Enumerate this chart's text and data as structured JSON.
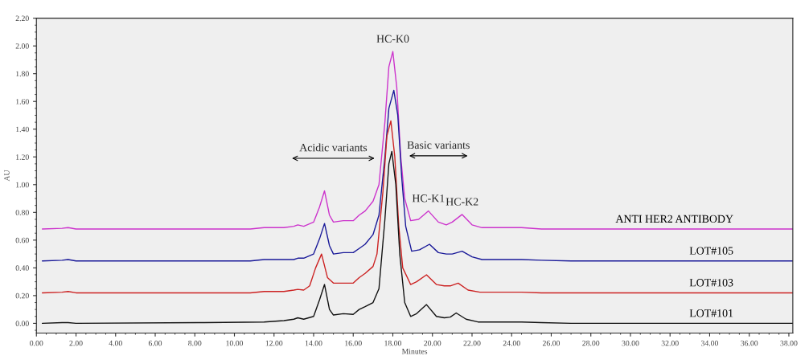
{
  "chart_data": {
    "type": "line",
    "xlabel": "Minutes",
    "ylabel": "AU",
    "xlim": [
      0,
      38.2
    ],
    "ylim": [
      -0.07,
      2.2
    ],
    "xticks": [
      {
        "value": 0,
        "label": "0.00"
      },
      {
        "value": 2,
        "label": "2.00"
      },
      {
        "value": 4,
        "label": "4.00"
      },
      {
        "value": 6,
        "label": "6.00"
      },
      {
        "value": 8,
        "label": "8.00"
      },
      {
        "value": 10,
        "label": "10.00"
      },
      {
        "value": 12,
        "label": "12.00"
      },
      {
        "value": 14,
        "label": "14.00"
      },
      {
        "value": 16,
        "label": "16.00"
      },
      {
        "value": 18,
        "label": "18.00"
      },
      {
        "value": 20,
        "label": "20.00"
      },
      {
        "value": 22,
        "label": "22.00"
      },
      {
        "value": 24,
        "label": "24.00"
      },
      {
        "value": 26,
        "label": "26.00"
      },
      {
        "value": 28,
        "label": "28.00"
      },
      {
        "value": 30,
        "label": "30.00"
      },
      {
        "value": 32,
        "label": "32.00"
      },
      {
        "value": 34,
        "label": "34.00"
      },
      {
        "value": 36,
        "label": "36.00"
      },
      {
        "value": 38,
        "label": "38.00"
      }
    ],
    "yticks": [
      {
        "value": 0,
        "label": "0.00"
      },
      {
        "value": 0.2,
        "label": "0.20"
      },
      {
        "value": 0.4,
        "label": "0.40"
      },
      {
        "value": 0.6,
        "label": "0.60"
      },
      {
        "value": 0.8,
        "label": "0.80"
      },
      {
        "value": 1.0,
        "label": "1.00"
      },
      {
        "value": 1.2,
        "label": "1.20"
      },
      {
        "value": 1.4,
        "label": "1.40"
      },
      {
        "value": 1.6,
        "label": "1.60"
      },
      {
        "value": 1.8,
        "label": "1.80"
      },
      {
        "value": 2.0,
        "label": "2.00"
      },
      {
        "value": 2.2,
        "label": "2.20"
      }
    ],
    "grid": false,
    "legend": false,
    "marker": "none",
    "line_style": "solid",
    "series": [
      {
        "name": "ANTI HER2 ANTIBODY",
        "color": "#cc33cc",
        "x": [
          0.3,
          1.3,
          1.6,
          2.0,
          10.8,
          11.5,
          12.5,
          13.0,
          13.2,
          13.5,
          14.0,
          14.3,
          14.55,
          14.8,
          15.0,
          15.5,
          16.0,
          16.3,
          16.6,
          17.0,
          17.3,
          17.6,
          17.8,
          18.0,
          18.2,
          18.4,
          18.6,
          18.9,
          19.3,
          19.8,
          20.3,
          20.7,
          21.0,
          21.5,
          22.0,
          22.5,
          24.5,
          25.5,
          27.0,
          38.2
        ],
        "values": [
          0.68,
          0.685,
          0.69,
          0.68,
          0.68,
          0.69,
          0.69,
          0.7,
          0.71,
          0.7,
          0.73,
          0.84,
          0.955,
          0.78,
          0.73,
          0.74,
          0.74,
          0.78,
          0.81,
          0.88,
          1.0,
          1.45,
          1.85,
          1.96,
          1.7,
          1.2,
          0.9,
          0.74,
          0.75,
          0.81,
          0.73,
          0.71,
          0.73,
          0.785,
          0.71,
          0.69,
          0.69,
          0.68,
          0.68,
          0.68
        ]
      },
      {
        "name": "LOT#105",
        "color": "#1a1a99",
        "x": [
          0.3,
          1.3,
          1.6,
          2.0,
          10.8,
          11.5,
          12.5,
          13.0,
          13.2,
          13.5,
          14.0,
          14.3,
          14.55,
          14.8,
          15.0,
          15.5,
          16.0,
          16.3,
          16.6,
          17.0,
          17.3,
          17.6,
          17.8,
          18.05,
          18.25,
          18.45,
          18.65,
          18.95,
          19.35,
          19.85,
          20.3,
          20.7,
          21.0,
          21.5,
          22.0,
          22.5,
          24.5,
          25.5,
          27.0,
          38.2
        ],
        "values": [
          0.45,
          0.455,
          0.46,
          0.45,
          0.45,
          0.46,
          0.46,
          0.46,
          0.47,
          0.47,
          0.5,
          0.61,
          0.72,
          0.56,
          0.5,
          0.51,
          0.51,
          0.54,
          0.57,
          0.64,
          0.78,
          1.2,
          1.55,
          1.68,
          1.5,
          1.05,
          0.7,
          0.52,
          0.53,
          0.57,
          0.51,
          0.5,
          0.5,
          0.52,
          0.48,
          0.46,
          0.46,
          0.455,
          0.45,
          0.45
        ]
      },
      {
        "name": "LOT#103",
        "color": "#cc2222",
        "x": [
          0.3,
          1.3,
          1.6,
          2.0,
          10.8,
          11.5,
          12.5,
          13.0,
          13.2,
          13.5,
          13.8,
          14.1,
          14.4,
          14.7,
          15.0,
          15.5,
          16.0,
          16.3,
          16.6,
          17.0,
          17.2,
          17.5,
          17.7,
          17.9,
          18.1,
          18.3,
          18.5,
          18.9,
          19.2,
          19.7,
          20.2,
          20.6,
          20.9,
          21.3,
          21.8,
          22.4,
          24.5,
          25.5,
          27.0,
          38.2
        ],
        "values": [
          0.22,
          0.225,
          0.23,
          0.22,
          0.22,
          0.23,
          0.23,
          0.24,
          0.245,
          0.24,
          0.27,
          0.4,
          0.5,
          0.33,
          0.29,
          0.29,
          0.29,
          0.33,
          0.36,
          0.41,
          0.5,
          0.95,
          1.35,
          1.46,
          1.2,
          0.7,
          0.4,
          0.28,
          0.3,
          0.35,
          0.28,
          0.27,
          0.27,
          0.29,
          0.24,
          0.225,
          0.225,
          0.22,
          0.22,
          0.22
        ]
      },
      {
        "name": "LOT#101",
        "color": "#111111",
        "x": [
          0.3,
          1.3,
          1.6,
          2.0,
          8.2,
          11.5,
          12.5,
          13.0,
          13.2,
          13.5,
          14.0,
          14.3,
          14.55,
          14.8,
          15.0,
          15.5,
          16.0,
          16.3,
          16.6,
          17.0,
          17.3,
          17.6,
          17.8,
          17.95,
          18.15,
          18.35,
          18.6,
          18.9,
          19.2,
          19.7,
          20.2,
          20.6,
          20.9,
          21.2,
          21.7,
          22.3,
          24.5,
          25.5,
          27.0,
          38.2
        ],
        "values": [
          0.0,
          0.005,
          0.005,
          0.0,
          0.005,
          0.01,
          0.02,
          0.03,
          0.04,
          0.03,
          0.05,
          0.17,
          0.28,
          0.1,
          0.06,
          0.07,
          0.065,
          0.1,
          0.12,
          0.15,
          0.25,
          0.75,
          1.15,
          1.24,
          1.0,
          0.5,
          0.15,
          0.05,
          0.07,
          0.135,
          0.05,
          0.04,
          0.045,
          0.075,
          0.03,
          0.01,
          0.01,
          0.005,
          0.0,
          0.0
        ]
      }
    ],
    "annotations": [
      {
        "text": "HC-K0",
        "x": 18.0,
        "y": 1.96
      },
      "Acidic variants",
      "Basic variants",
      {
        "text": "HC-K1",
        "x": 19.8,
        "y": 0.81
      },
      {
        "text": "HC-K2",
        "x": 21.5,
        "y": 0.785
      }
    ]
  }
}
